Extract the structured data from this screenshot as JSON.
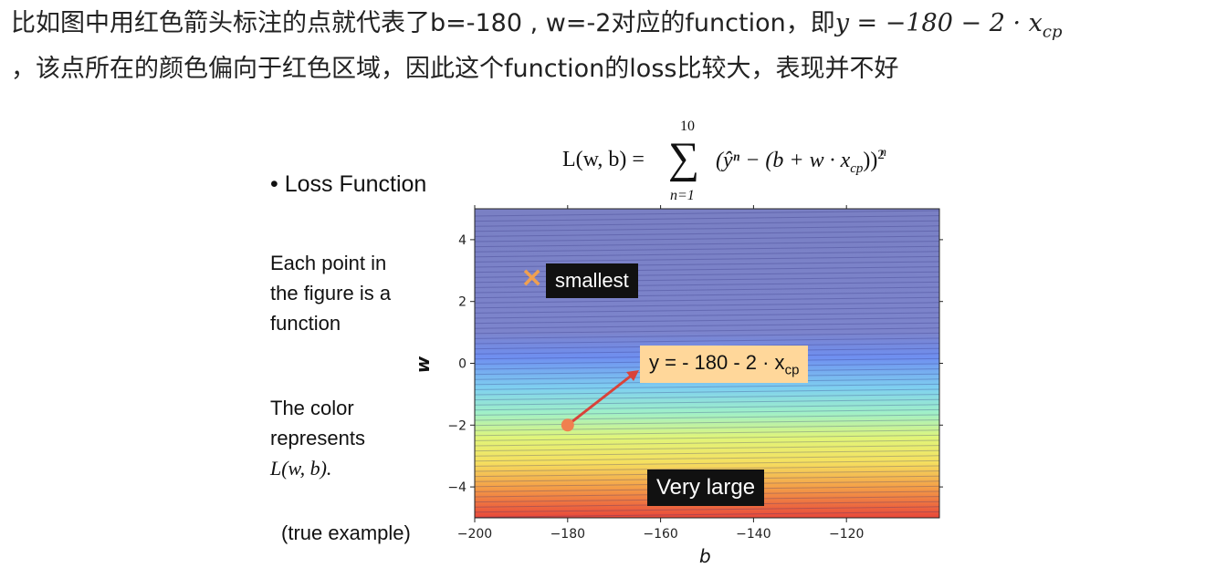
{
  "paragraph": {
    "line1_text": "比如图中用红色箭头标注的点就代表了b=-180 , w=-2对应的function，即",
    "line1_math": "y = −180 − 2 · x",
    "line1_math_sub": "cp",
    "line2_text": "，该点所在的颜色偏向于红色区域，因此这个function的loss比较大，表现并不好"
  },
  "slide": {
    "bullet_title": "• Loss Function",
    "desc1": [
      "Each point in",
      "the figure is a",
      "function"
    ],
    "desc2": [
      "The color",
      "represents"
    ],
    "desc2_math": "L(w, b).",
    "true_example": "(true example)",
    "formula": {
      "lhs": "L(w, b) =",
      "sum_top": "10",
      "sum_bottom": "n=1",
      "body": "(ŷⁿ − (b + w · x",
      "body_sub": "cp",
      "body_sup": "n",
      "tail": "))",
      "power": "2"
    },
    "labels": {
      "smallest": "smallest",
      "function_label": "y = - 180 - 2 · x",
      "function_label_sub": "cp",
      "very_large": "Very large"
    },
    "marker": {
      "b": -188,
      "w": 2.7,
      "symbol": "×",
      "color": "#f0a050"
    },
    "point": {
      "b": -180,
      "w": -2,
      "color": "#f08050"
    },
    "arrow_color": "#d9433a"
  },
  "chart_data": {
    "type": "heatmap",
    "xlabel": "b",
    "ylabel": "w",
    "xlim": [
      -200,
      -100
    ],
    "ylim": [
      -5,
      5
    ],
    "x_ticks": [
      -200,
      -180,
      -160,
      -140,
      -120
    ],
    "y_ticks": [
      -4,
      -2,
      0,
      2,
      4
    ],
    "x_tick_labels": [
      "−200",
      "−180",
      "−160",
      "−140",
      "−120"
    ],
    "y_tick_labels": [
      "−4",
      "−2",
      "0",
      "2",
      "4"
    ],
    "colormap": "jet",
    "low_color": "#7a80c4",
    "high_color": "#e8473a"
  }
}
